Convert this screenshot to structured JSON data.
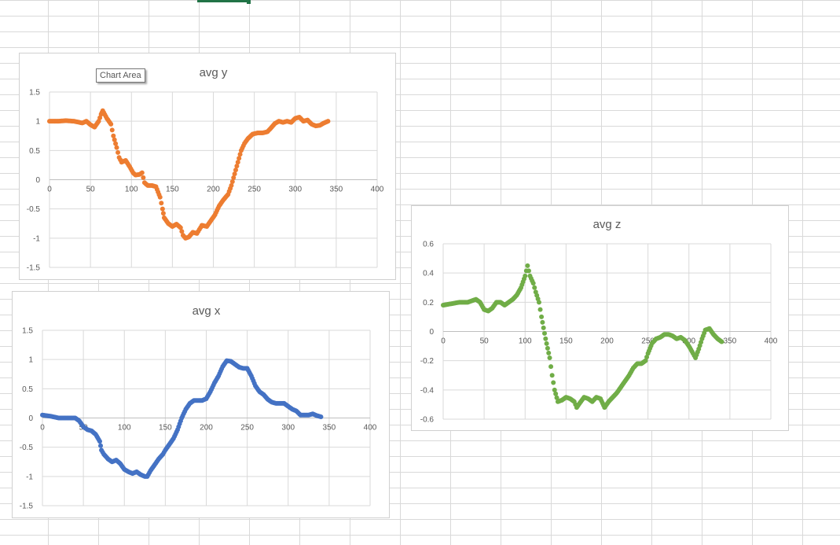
{
  "tooltip": "Chart Area",
  "chart_data": [
    {
      "id": "avg-y",
      "type": "scatter",
      "title": "avg y",
      "color": "#ED7D31",
      "xlim": [
        0,
        400
      ],
      "ylim": [
        -1.5,
        1.5
      ],
      "xticks": [
        0,
        50,
        100,
        150,
        200,
        250,
        300,
        350,
        400
      ],
      "yticks": [
        -1.5,
        -1,
        -0.5,
        0,
        0.5,
        1,
        1.5
      ],
      "points": [
        [
          0,
          1.0
        ],
        [
          10,
          1.0
        ],
        [
          20,
          1.01
        ],
        [
          30,
          1.0
        ],
        [
          40,
          0.97
        ],
        [
          45,
          1.0
        ],
        [
          50,
          0.94
        ],
        [
          55,
          0.9
        ],
        [
          60,
          1.0
        ],
        [
          63,
          1.12
        ],
        [
          65,
          1.18
        ],
        [
          70,
          1.05
        ],
        [
          75,
          0.95
        ],
        [
          78,
          0.75
        ],
        [
          82,
          0.55
        ],
        [
          85,
          0.38
        ],
        [
          88,
          0.3
        ],
        [
          93,
          0.33
        ],
        [
          98,
          0.22
        ],
        [
          102,
          0.12
        ],
        [
          105,
          0.08
        ],
        [
          110,
          0.09
        ],
        [
          113,
          0.12
        ],
        [
          116,
          -0.05
        ],
        [
          120,
          -0.1
        ],
        [
          125,
          -0.1
        ],
        [
          130,
          -0.12
        ],
        [
          135,
          -0.3
        ],
        [
          138,
          -0.5
        ],
        [
          140,
          -0.65
        ],
        [
          145,
          -0.75
        ],
        [
          150,
          -0.8
        ],
        [
          155,
          -0.76
        ],
        [
          160,
          -0.82
        ],
        [
          163,
          -0.95
        ],
        [
          166,
          -1.0
        ],
        [
          170,
          -0.98
        ],
        [
          175,
          -0.9
        ],
        [
          180,
          -0.92
        ],
        [
          183,
          -0.85
        ],
        [
          186,
          -0.78
        ],
        [
          192,
          -0.8
        ],
        [
          197,
          -0.7
        ],
        [
          202,
          -0.6
        ],
        [
          207,
          -0.45
        ],
        [
          212,
          -0.35
        ],
        [
          218,
          -0.25
        ],
        [
          222,
          -0.1
        ],
        [
          226,
          0.1
        ],
        [
          230,
          0.3
        ],
        [
          234,
          0.5
        ],
        [
          238,
          0.62
        ],
        [
          242,
          0.7
        ],
        [
          248,
          0.78
        ],
        [
          254,
          0.8
        ],
        [
          260,
          0.8
        ],
        [
          266,
          0.82
        ],
        [
          270,
          0.88
        ],
        [
          275,
          0.96
        ],
        [
          280,
          1.0
        ],
        [
          285,
          0.98
        ],
        [
          290,
          1.0
        ],
        [
          295,
          0.98
        ],
        [
          300,
          1.05
        ],
        [
          305,
          1.07
        ],
        [
          310,
          1.0
        ],
        [
          315,
          1.02
        ],
        [
          320,
          0.95
        ],
        [
          325,
          0.92
        ],
        [
          330,
          0.93
        ],
        [
          335,
          0.97
        ],
        [
          340,
          1.0
        ]
      ]
    },
    {
      "id": "avg-x",
      "type": "scatter",
      "title": "avg x",
      "color": "#4472C4",
      "xlim": [
        0,
        400
      ],
      "ylim": [
        -1.5,
        1.5
      ],
      "xticks": [
        0,
        50,
        100,
        150,
        200,
        250,
        300,
        350,
        400
      ],
      "yticks": [
        -1.5,
        -1,
        -0.5,
        0,
        0.5,
        1,
        1.5
      ],
      "points": [
        [
          0,
          0.05
        ],
        [
          10,
          0.03
        ],
        [
          20,
          0.0
        ],
        [
          30,
          0.0
        ],
        [
          40,
          0.0
        ],
        [
          45,
          -0.05
        ],
        [
          50,
          -0.15
        ],
        [
          55,
          -0.2
        ],
        [
          60,
          -0.22
        ],
        [
          65,
          -0.28
        ],
        [
          70,
          -0.4
        ],
        [
          72,
          -0.55
        ],
        [
          75,
          -0.62
        ],
        [
          80,
          -0.7
        ],
        [
          85,
          -0.75
        ],
        [
          90,
          -0.72
        ],
        [
          95,
          -0.78
        ],
        [
          100,
          -0.88
        ],
        [
          105,
          -0.92
        ],
        [
          110,
          -0.95
        ],
        [
          115,
          -0.92
        ],
        [
          120,
          -0.97
        ],
        [
          125,
          -1.0
        ],
        [
          128,
          -1.0
        ],
        [
          132,
          -0.9
        ],
        [
          137,
          -0.8
        ],
        [
          142,
          -0.7
        ],
        [
          147,
          -0.62
        ],
        [
          150,
          -0.55
        ],
        [
          155,
          -0.45
        ],
        [
          160,
          -0.35
        ],
        [
          165,
          -0.2
        ],
        [
          170,
          0.0
        ],
        [
          175,
          0.15
        ],
        [
          180,
          0.25
        ],
        [
          185,
          0.3
        ],
        [
          190,
          0.3
        ],
        [
          195,
          0.3
        ],
        [
          200,
          0.33
        ],
        [
          205,
          0.45
        ],
        [
          210,
          0.6
        ],
        [
          215,
          0.72
        ],
        [
          220,
          0.88
        ],
        [
          225,
          0.98
        ],
        [
          230,
          0.97
        ],
        [
          235,
          0.92
        ],
        [
          240,
          0.87
        ],
        [
          245,
          0.85
        ],
        [
          250,
          0.85
        ],
        [
          255,
          0.72
        ],
        [
          260,
          0.55
        ],
        [
          265,
          0.45
        ],
        [
          270,
          0.4
        ],
        [
          275,
          0.32
        ],
        [
          280,
          0.27
        ],
        [
          285,
          0.25
        ],
        [
          290,
          0.25
        ],
        [
          295,
          0.25
        ],
        [
          300,
          0.2
        ],
        [
          305,
          0.15
        ],
        [
          310,
          0.12
        ],
        [
          315,
          0.05
        ],
        [
          320,
          0.05
        ],
        [
          325,
          0.05
        ],
        [
          330,
          0.07
        ],
        [
          335,
          0.04
        ],
        [
          340,
          0.02
        ]
      ]
    },
    {
      "id": "avg-z",
      "type": "scatter",
      "title": "avg z",
      "color": "#70AD47",
      "xlim": [
        0,
        400
      ],
      "ylim": [
        -0.6,
        0.6
      ],
      "xticks": [
        0,
        50,
        100,
        150,
        200,
        250,
        300,
        350,
        400
      ],
      "yticks": [
        -0.6,
        -0.4,
        -0.2,
        0,
        0.2,
        0.4,
        0.6
      ],
      "points": [
        [
          0,
          0.18
        ],
        [
          10,
          0.19
        ],
        [
          20,
          0.2
        ],
        [
          30,
          0.2
        ],
        [
          40,
          0.22
        ],
        [
          45,
          0.2
        ],
        [
          50,
          0.15
        ],
        [
          55,
          0.14
        ],
        [
          60,
          0.16
        ],
        [
          65,
          0.2
        ],
        [
          70,
          0.2
        ],
        [
          75,
          0.18
        ],
        [
          80,
          0.2
        ],
        [
          85,
          0.22
        ],
        [
          90,
          0.25
        ],
        [
          95,
          0.3
        ],
        [
          100,
          0.38
        ],
        [
          103,
          0.45
        ],
        [
          106,
          0.38
        ],
        [
          110,
          0.33
        ],
        [
          113,
          0.27
        ],
        [
          117,
          0.2
        ],
        [
          120,
          0.1
        ],
        [
          125,
          -0.05
        ],
        [
          130,
          -0.18
        ],
        [
          133,
          -0.3
        ],
        [
          136,
          -0.4
        ],
        [
          140,
          -0.48
        ],
        [
          145,
          -0.47
        ],
        [
          150,
          -0.45
        ],
        [
          155,
          -0.46
        ],
        [
          160,
          -0.48
        ],
        [
          163,
          -0.52
        ],
        [
          168,
          -0.48
        ],
        [
          172,
          -0.45
        ],
        [
          177,
          -0.46
        ],
        [
          182,
          -0.48
        ],
        [
          187,
          -0.45
        ],
        [
          192,
          -0.46
        ],
        [
          197,
          -0.52
        ],
        [
          202,
          -0.48
        ],
        [
          207,
          -0.45
        ],
        [
          212,
          -0.42
        ],
        [
          217,
          -0.38
        ],
        [
          222,
          -0.34
        ],
        [
          227,
          -0.3
        ],
        [
          232,
          -0.25
        ],
        [
          237,
          -0.22
        ],
        [
          242,
          -0.22
        ],
        [
          247,
          -0.2
        ],
        [
          250,
          -0.15
        ],
        [
          255,
          -0.08
        ],
        [
          260,
          -0.05
        ],
        [
          265,
          -0.04
        ],
        [
          270,
          -0.02
        ],
        [
          275,
          -0.02
        ],
        [
          280,
          -0.03
        ],
        [
          285,
          -0.05
        ],
        [
          290,
          -0.04
        ],
        [
          295,
          -0.06
        ],
        [
          300,
          -0.1
        ],
        [
          305,
          -0.15
        ],
        [
          308,
          -0.18
        ],
        [
          312,
          -0.12
        ],
        [
          316,
          -0.05
        ],
        [
          320,
          0.01
        ],
        [
          325,
          0.02
        ],
        [
          330,
          -0.02
        ],
        [
          335,
          -0.05
        ],
        [
          340,
          -0.07
        ]
      ]
    }
  ]
}
